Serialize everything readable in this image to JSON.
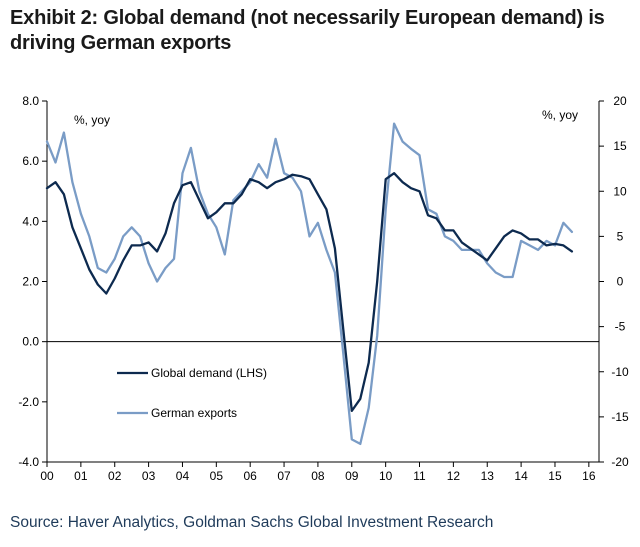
{
  "title": "Exhibit 2: Global demand (not necessarily European demand) is driving German exports",
  "source": "Source: Haver Analytics, Goldman Sachs Global Investment Research",
  "chart_data": {
    "type": "line",
    "title": "Exhibit 2: Global demand (not necessarily European demand) is driving German exports",
    "left_axis": {
      "label": "%, yoy",
      "range": [
        -4.0,
        8.0
      ],
      "ticks": [
        8.0,
        6.0,
        4.0,
        2.0,
        0.0,
        -2.0,
        -4.0
      ],
      "tick_labels": [
        "8.0",
        "6.0",
        "4.0",
        "2.0",
        "0.0",
        "-2.0",
        "-4.0"
      ]
    },
    "right_axis": {
      "label": "%, yoy",
      "range": [
        -20,
        20
      ],
      "ticks": [
        20,
        15,
        10,
        5,
        0,
        -5,
        -10,
        -15,
        -20
      ],
      "tick_labels": [
        "20",
        "15",
        "10",
        "5",
        "0",
        "-5",
        "-10",
        "-15",
        "-20"
      ]
    },
    "x_axis": {
      "range": [
        2000,
        2016.3
      ],
      "tick_labels": [
        "00",
        "01",
        "02",
        "03",
        "04",
        "05",
        "06",
        "07",
        "08",
        "09",
        "10",
        "11",
        "12",
        "13",
        "14",
        "15",
        "16"
      ]
    },
    "legend": [
      "Global demand (LHS)",
      "German exports"
    ],
    "legend_position": "lower-left",
    "colors": {
      "global": "#0d2a4f",
      "exports": "#7a9cc6",
      "axis": "#000000"
    },
    "series": [
      {
        "name": "Global demand (LHS)",
        "axis": "left",
        "x": [
          2000.0,
          2000.25,
          2000.5,
          2000.75,
          2001.0,
          2001.25,
          2001.5,
          2001.75,
          2002.0,
          2002.25,
          2002.5,
          2002.75,
          2003.0,
          2003.25,
          2003.5,
          2003.75,
          2004.0,
          2004.25,
          2004.5,
          2004.75,
          2005.0,
          2005.25,
          2005.5,
          2005.75,
          2006.0,
          2006.25,
          2006.5,
          2006.75,
          2007.0,
          2007.25,
          2007.5,
          2007.75,
          2008.0,
          2008.25,
          2008.5,
          2008.75,
          2009.0,
          2009.25,
          2009.5,
          2009.75,
          2010.0,
          2010.25,
          2010.5,
          2010.75,
          2011.0,
          2011.25,
          2011.5,
          2011.75,
          2012.0,
          2012.25,
          2012.5,
          2012.75,
          2013.0,
          2013.25,
          2013.5,
          2013.75,
          2014.0,
          2014.25,
          2014.5,
          2014.75,
          2015.0,
          2015.25,
          2015.5
        ],
        "values": [
          5.1,
          5.3,
          4.9,
          3.8,
          3.1,
          2.4,
          1.9,
          1.6,
          2.1,
          2.7,
          3.2,
          3.2,
          3.3,
          3.0,
          3.6,
          4.6,
          5.2,
          5.3,
          4.7,
          4.1,
          4.3,
          4.6,
          4.6,
          4.9,
          5.4,
          5.3,
          5.1,
          5.3,
          5.4,
          5.55,
          5.5,
          5.4,
          4.9,
          4.4,
          3.1,
          0.4,
          -2.3,
          -1.9,
          -0.7,
          2.0,
          5.4,
          5.6,
          5.3,
          5.1,
          5.0,
          4.2,
          4.1,
          3.7,
          3.7,
          3.3,
          3.1,
          2.9,
          2.7,
          3.1,
          3.5,
          3.7,
          3.6,
          3.4,
          3.4,
          3.2,
          3.25,
          3.2,
          3.0
        ]
      },
      {
        "name": "German exports",
        "axis": "right",
        "x": [
          2000.0,
          2000.25,
          2000.5,
          2000.75,
          2001.0,
          2001.25,
          2001.5,
          2001.75,
          2002.0,
          2002.25,
          2002.5,
          2002.75,
          2003.0,
          2003.25,
          2003.5,
          2003.75,
          2004.0,
          2004.25,
          2004.5,
          2004.75,
          2005.0,
          2005.25,
          2005.5,
          2005.75,
          2006.0,
          2006.25,
          2006.5,
          2006.75,
          2007.0,
          2007.25,
          2007.5,
          2007.75,
          2008.0,
          2008.25,
          2008.5,
          2008.75,
          2009.0,
          2009.25,
          2009.5,
          2009.75,
          2010.0,
          2010.25,
          2010.5,
          2010.75,
          2011.0,
          2011.25,
          2011.5,
          2011.75,
          2012.0,
          2012.25,
          2012.5,
          2012.75,
          2013.0,
          2013.25,
          2013.5,
          2013.75,
          2014.0,
          2014.25,
          2014.5,
          2014.75,
          2015.0,
          2015.25,
          2015.5
        ],
        "values": [
          15.5,
          13.2,
          16.5,
          11.0,
          7.5,
          5.0,
          1.5,
          1.0,
          2.5,
          5.0,
          6.0,
          5.0,
          2.0,
          0.0,
          1.5,
          2.5,
          12.0,
          14.8,
          10.0,
          7.5,
          6.0,
          3.0,
          9.0,
          10.0,
          11.0,
          13.0,
          11.5,
          15.8,
          12.0,
          11.5,
          10.0,
          5.0,
          6.5,
          3.5,
          1.0,
          -8.0,
          -17.5,
          -18.0,
          -14.0,
          -6.0,
          8.0,
          17.5,
          15.5,
          14.7,
          14.0,
          8.0,
          7.5,
          5.0,
          4.5,
          3.5,
          3.5,
          3.5,
          2.0,
          1.0,
          0.5,
          0.5,
          4.5,
          4.0,
          3.5,
          4.5,
          4.0,
          6.5,
          5.5
        ]
      }
    ]
  }
}
